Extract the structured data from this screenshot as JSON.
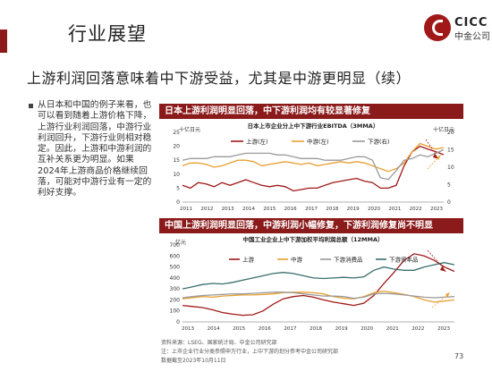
{
  "header": {
    "title": "行业展望",
    "logo_main": "CICC",
    "logo_sub": "中金公司",
    "brand_color": "#8b1a1a"
  },
  "headline": "上游利润回落意味着中下游受益，尤其是中游更明显（续）",
  "bullet": "从日本和中国的例子来看，也可以看到随着上游价格下降，上游行业利润回落，中游行业利润回升，下游行业则相对稳定。因此，上游和中游利润的互补关系更为明显。如果2024年上游商品价格继续回落，可能对中游行业有一定的利好支撑。",
  "panels": [
    {
      "head": "日本上游利润明显回落，中下游利润均有较显著修复"
    },
    {
      "head": "中国上游利润明显回落，中游利润小幅修复，下游利润修复尚不明显"
    }
  ],
  "chart_data": [
    {
      "type": "line",
      "title": "日本上市企业分上中下游行业EBITDA（3MMA）",
      "ylabel_left": "十亿日元",
      "ylabel_right": "十亿日元",
      "ylim_left": [
        0,
        25
      ],
      "yticks_left": [
        0,
        5,
        10,
        15,
        20,
        25
      ],
      "ylim_right": [
        0,
        20
      ],
      "yticks_right": [
        0,
        5,
        10,
        15,
        20
      ],
      "x_ticks": [
        "2011",
        "2012",
        "2013",
        "2014",
        "2015",
        "2016",
        "2017",
        "2018",
        "2019",
        "2020",
        "2021",
        "2022",
        "2023"
      ],
      "series": [
        {
          "name": "上游(左)",
          "color": "#a01818",
          "axis": "left",
          "values": [
            6,
            5,
            7,
            6.5,
            5.5,
            7,
            6,
            7,
            8,
            7,
            6,
            5.5,
            6,
            5.5,
            4,
            4.5,
            5,
            5,
            6,
            7,
            7.5,
            8,
            8.5,
            7.5,
            7,
            5,
            5,
            6,
            13,
            18,
            20,
            19,
            18,
            17
          ]
        },
        {
          "name": "中游(左)",
          "color": "#e8a030",
          "axis": "left",
          "values": [
            13,
            14,
            14,
            13.5,
            12.5,
            13,
            14,
            15,
            15,
            14.5,
            13,
            13.5,
            14,
            14.5,
            14,
            13.5,
            14,
            13,
            13.5,
            14,
            14.5,
            14,
            14.5,
            14,
            13,
            12,
            11,
            12,
            14,
            18,
            21,
            20,
            19,
            19.5
          ]
        },
        {
          "name": "下游(右)",
          "color": "#9a9a9a",
          "axis": "right",
          "values": [
            12,
            12.5,
            12.5,
            12.5,
            13,
            13,
            13,
            13.5,
            14,
            14,
            14,
            14,
            13.5,
            13.5,
            13,
            12.5,
            12.5,
            12.5,
            12,
            12,
            12,
            12.5,
            13,
            13,
            12,
            7,
            6.5,
            9,
            12,
            12.5,
            13.5,
            13,
            14,
            15
          ]
        }
      ],
      "annotations": [
        "arrow-down-upstream",
        "arrow-up-mid-down"
      ]
    },
    {
      "type": "line",
      "title": "中国工业企业上中下游加权平均利润总额（12MMA）",
      "ylabel": "亿元",
      "ylim": [
        0,
        700
      ],
      "yticks": [
        0,
        100,
        200,
        300,
        400,
        500,
        600,
        700
      ],
      "x_ticks": [
        "2013",
        "2014",
        "2015",
        "2016",
        "2017",
        "2018",
        "2019",
        "2020",
        "2021",
        "2022",
        "2023"
      ],
      "series": [
        {
          "name": "上游",
          "color": "#a01818",
          "values": [
            150,
            140,
            130,
            110,
            85,
            70,
            60,
            65,
            100,
            160,
            210,
            230,
            240,
            225,
            200,
            180,
            165,
            150,
            170,
            240,
            350,
            450,
            560,
            620,
            600,
            560,
            500,
            460
          ]
        },
        {
          "name": "中游",
          "color": "#e8a030",
          "values": [
            210,
            220,
            230,
            225,
            235,
            240,
            245,
            245,
            250,
            255,
            265,
            270,
            270,
            265,
            255,
            230,
            215,
            210,
            230,
            265,
            280,
            265,
            250,
            230,
            200,
            180,
            190,
            200
          ]
        },
        {
          "name": "下游消费品",
          "color": "#9a9a9a",
          "values": [
            220,
            230,
            240,
            245,
            250,
            255,
            255,
            260,
            265,
            270,
            270,
            265,
            255,
            245,
            235,
            235,
            230,
            215,
            225,
            255,
            260,
            255,
            245,
            235,
            225,
            220,
            225,
            230
          ]
        },
        {
          "name": "下游资本品",
          "color": "#3a6e6e",
          "values": [
            300,
            320,
            340,
            350,
            345,
            360,
            380,
            400,
            420,
            440,
            450,
            440,
            420,
            400,
            395,
            400,
            405,
            400,
            410,
            470,
            500,
            480,
            470,
            470,
            500,
            520,
            540,
            520
          ]
        }
      ],
      "annotations": [
        "arrow-down-upstream",
        "arrow-up-downstream-consumer"
      ]
    }
  ],
  "footnotes": [
    "资料来源：LSEG、国家统计局、中金公司研究部",
    "注：上市企业行业分类参照申万行业，上中下游的划分参考中金公司研究部",
    "数据截至2023年10月11日"
  ],
  "page_number": "73"
}
